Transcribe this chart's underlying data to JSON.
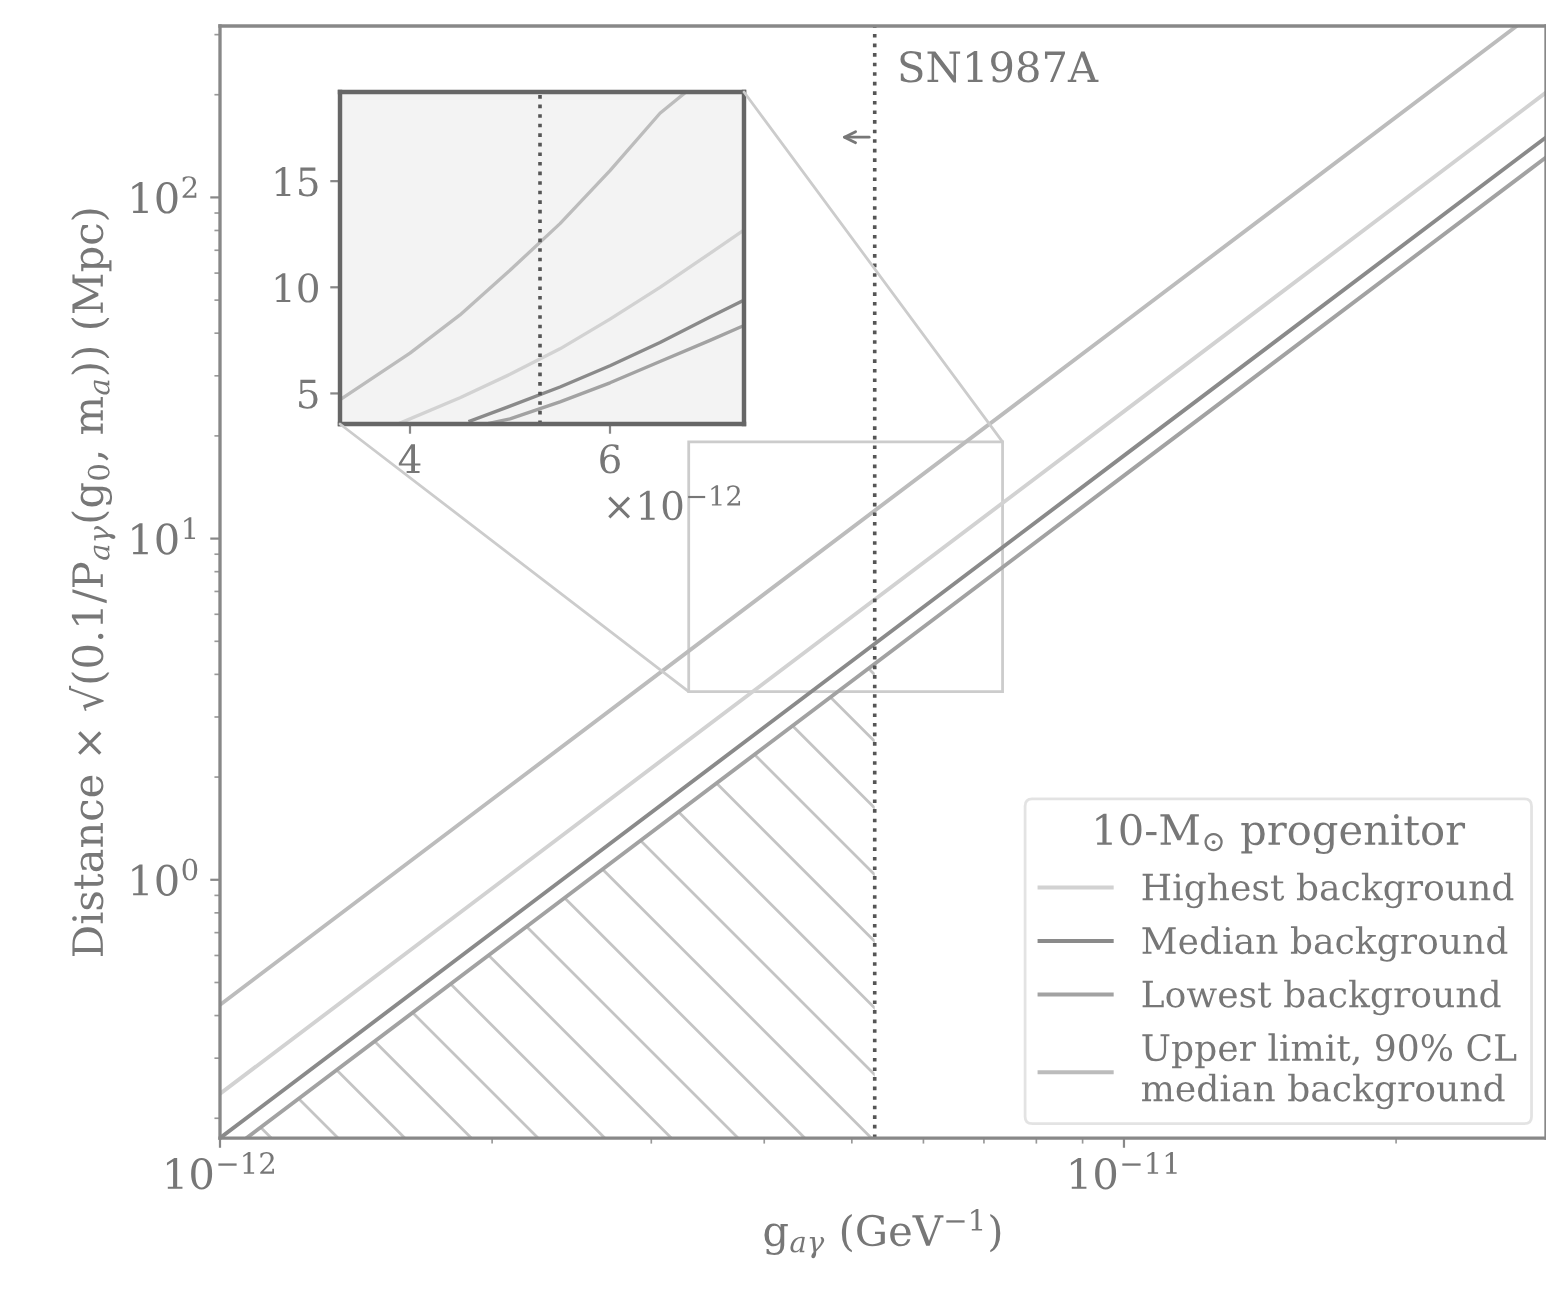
{
  "chart_data": [
    {
      "type": "line",
      "xlabel": "g$_{aγ}$ (GeV$^{−1}$)",
      "ylabel": "Distance × √(0.1/P$_{aγ}$(g$_{0}$, m$_{a}$)) (Mpc)",
      "legend_title": "10-M$_{⊙}$ progenitor",
      "log": "xy",
      "xlim": [
        1e-12,
        2.93e-11
      ],
      "ylim": [
        0.175,
        318
      ],
      "xticks": [
        {
          "value": 1e-12,
          "label": "10$^{−12}$"
        },
        {
          "value": 1e-11,
          "label": "10$^{−11}$"
        }
      ],
      "yticks": [
        {
          "value": 1,
          "label": "10$^{0}$"
        },
        {
          "value": 10,
          "label": "10$^{1}$"
        },
        {
          "value": 100,
          "label": "10$^{2}$"
        }
      ],
      "grid": false,
      "legend": "bottom right",
      "series": [
        {
          "name": "Highest background",
          "color": "#d2d2d2",
          "x": [
            1e-12,
            1e-11,
            2.93e-11
          ],
          "values": [
            0.236,
            23.6,
            203
          ]
        },
        {
          "name": "Median background",
          "color": "#8a8a8a",
          "x": [
            1e-12,
            1e-11,
            2.93e-11
          ],
          "values": [
            0.175,
            17.5,
            150
          ]
        },
        {
          "name": "Lowest background",
          "color": "#a2a2a2",
          "x": [
            1.07e-12,
            1e-11,
            2.93e-11
          ],
          "values": [
            0.175,
            15.3,
            131
          ]
        },
        {
          "name": "Upper limit, 90% CL\nmedian background",
          "color": "#bcbcbc",
          "x": [
            1e-12,
            1e-11,
            2.72e-11
          ],
          "values": [
            0.43,
            43,
            318
          ]
        },
        {
          "type": "area",
          "color": "#c4c4c4",
          "x": [
            1.07e-12,
            5.3e-12
          ],
          "values": [
            0.175,
            4.3
          ]
        }
      ],
      "ref_lines": [
        {
          "axis": "x",
          "value": 5.3e-12,
          "label": "SN1987A",
          "line_style": "dotted",
          "color": "#555555"
        }
      ]
    },
    {
      "type": "line",
      "xlim": [
        3.3,
        7.34
      ],
      "ylim": [
        3.56,
        19.2
      ],
      "xticks": [
        4,
        6
      ],
      "yticks": [
        5,
        10,
        15
      ],
      "annotations": [
        "×10$^{−12}$"
      ],
      "grid": false,
      "series": [
        {
          "color": "#d2d2d2",
          "x": [
            3.9,
            4.5,
            5,
            5.5,
            6,
            6.5,
            7,
            7.34
          ],
          "values": [
            3.6,
            4.8,
            5.9,
            7.1,
            8.5,
            10,
            11.6,
            12.7
          ]
        },
        {
          "color": "#8a8a8a",
          "x": [
            4.6,
            5,
            5.5,
            6,
            6.5,
            7,
            7.34
          ],
          "values": [
            3.7,
            4.4,
            5.3,
            6.3,
            7.4,
            8.6,
            9.4
          ]
        },
        {
          "color": "#a2a2a2",
          "x": [
            4.8,
            5,
            5.5,
            6,
            6.5,
            7,
            7.34
          ],
          "values": [
            3.6,
            3.8,
            4.6,
            5.5,
            6.5,
            7.5,
            8.2
          ]
        },
        {
          "color": "#bcbcbc",
          "x": [
            3.3,
            4,
            4.5,
            5,
            5.5,
            6,
            6.5,
            6.76
          ],
          "values": [
            4.7,
            6.9,
            8.7,
            10.8,
            13,
            15.5,
            18.2,
            19.2
          ]
        }
      ],
      "ref_lines": [
        {
          "axis": "x",
          "value": 5.3,
          "line_style": "dotted",
          "color": "#555555"
        }
      ]
    }
  ]
}
